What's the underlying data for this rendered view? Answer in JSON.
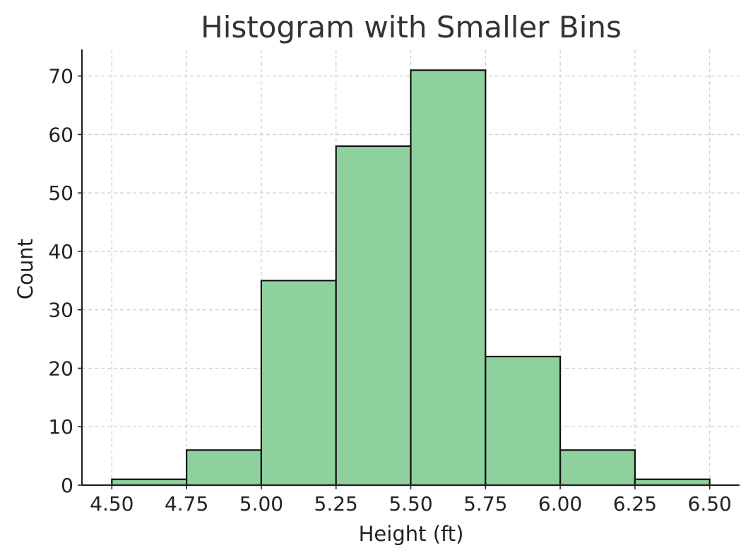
{
  "chart_data": {
    "type": "bar",
    "title": "Histogram with Smaller Bins",
    "xlabel": "Height (ft)",
    "ylabel": "Count",
    "bins": [
      {
        "start": 4.5,
        "end": 4.75,
        "count": 1
      },
      {
        "start": 4.75,
        "end": 5.0,
        "count": 6
      },
      {
        "start": 5.0,
        "end": 5.25,
        "count": 35
      },
      {
        "start": 5.25,
        "end": 5.5,
        "count": 58
      },
      {
        "start": 5.5,
        "end": 5.75,
        "count": 71
      },
      {
        "start": 5.75,
        "end": 6.0,
        "count": 22
      },
      {
        "start": 6.0,
        "end": 6.25,
        "count": 6
      },
      {
        "start": 6.25,
        "end": 6.5,
        "count": 1
      }
    ],
    "x_ticks": [
      "4.50",
      "4.75",
      "5.00",
      "5.25",
      "5.50",
      "5.75",
      "6.00",
      "6.25",
      "6.50"
    ],
    "y_ticks": [
      "0",
      "10",
      "20",
      "30",
      "40",
      "50",
      "60",
      "70"
    ],
    "xlim": [
      4.4,
      6.6
    ],
    "ylim": [
      0,
      74.55
    ],
    "grid": true,
    "bar_color": "#8fd19e",
    "edge_color": "#111111"
  }
}
